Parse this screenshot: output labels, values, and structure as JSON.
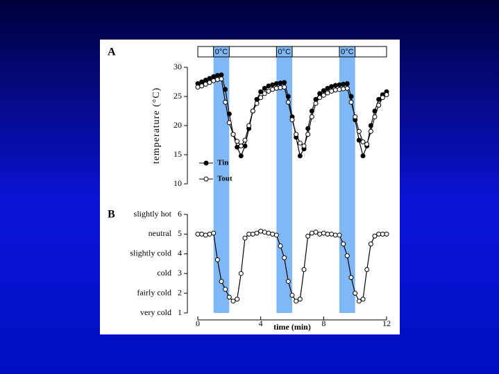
{
  "chart_data": [
    {
      "type": "line",
      "title": "A",
      "ylabel": "temperature (°C)",
      "x": [
        0,
        0.25,
        0.5,
        0.75,
        1,
        1.25,
        1.5,
        1.75,
        2,
        2.25,
        2.5,
        2.75,
        3,
        3.25,
        3.5,
        3.75,
        4,
        4.25,
        4.5,
        4.75,
        5,
        5.25,
        5.5,
        5.75,
        6,
        6.25,
        6.5,
        6.75,
        7,
        7.25,
        7.5,
        7.75,
        8,
        8.25,
        8.5,
        8.75,
        9,
        9.25,
        9.5,
        9.75,
        10,
        10.25,
        10.5,
        10.75,
        11,
        11.25,
        11.5,
        11.75,
        12
      ],
      "series": [
        {
          "name": "Tin",
          "color": "#000000",
          "values": [
            27.2,
            27.5,
            27.8,
            28.1,
            28.4,
            28.6,
            28.7,
            26.2,
            22.0,
            18.5,
            16.3,
            14.8,
            16.5,
            19.5,
            22.5,
            24.5,
            25.8,
            26.4,
            26.8,
            27.0,
            27.2,
            27.3,
            27.4,
            25.0,
            21.5,
            18.0,
            14.8,
            16.0,
            19.5,
            22.5,
            24.5,
            25.5,
            26.0,
            26.4,
            26.7,
            26.9,
            27.0,
            27.1,
            27.2,
            25.0,
            21.0,
            17.5,
            14.8,
            16.5,
            20.0,
            22.5,
            24.5,
            25.3,
            25.8
          ]
        },
        {
          "name": "Tout",
          "color": "#ffffff",
          "values": [
            26.6,
            26.8,
            27.1,
            27.4,
            27.7,
            27.9,
            28.0,
            24.0,
            20.5,
            18.5,
            17.3,
            16.5,
            17.5,
            20.0,
            22.5,
            23.8,
            24.8,
            25.5,
            25.9,
            26.2,
            26.4,
            26.5,
            26.6,
            24.0,
            21.0,
            18.5,
            17.0,
            16.5,
            18.5,
            21.5,
            23.8,
            24.8,
            25.2,
            25.6,
            25.9,
            26.1,
            26.2,
            26.3,
            26.4,
            24.0,
            21.5,
            19.0,
            17.2,
            16.8,
            19.0,
            21.5,
            23.5,
            24.8,
            25.3
          ]
        }
      ],
      "xlim": [
        0,
        12
      ],
      "ylim": [
        10,
        30
      ],
      "yticks": [
        10,
        15,
        20,
        25,
        30
      ],
      "bands": [
        {
          "start": 1,
          "end": 2,
          "label": "0°C"
        },
        {
          "start": 5,
          "end": 6,
          "label": "0°C"
        },
        {
          "start": 9,
          "end": 10,
          "label": "0°C"
        }
      ],
      "band_color": "#7fb8f5"
    },
    {
      "type": "line",
      "title": "B",
      "xlabel": "time (min)",
      "x": [
        0,
        0.25,
        0.5,
        0.75,
        1,
        1.25,
        1.5,
        1.75,
        2,
        2.25,
        2.5,
        2.75,
        3,
        3.25,
        3.5,
        3.75,
        4,
        4.25,
        4.5,
        4.75,
        5,
        5.25,
        5.5,
        5.75,
        6,
        6.25,
        6.5,
        6.75,
        7,
        7.25,
        7.5,
        7.75,
        8,
        8.25,
        8.5,
        8.75,
        9,
        9.25,
        9.5,
        9.75,
        10,
        10.25,
        10.5,
        10.75,
        11,
        11.25,
        11.5,
        11.75,
        12
      ],
      "series": [
        {
          "color": "#ffffff",
          "values": [
            5.0,
            5.0,
            4.95,
            5.0,
            5.05,
            3.7,
            2.6,
            2.2,
            1.8,
            1.6,
            1.7,
            3.0,
            4.8,
            5.0,
            5.0,
            5.05,
            5.15,
            5.1,
            5.05,
            5.0,
            4.95,
            4.4,
            3.8,
            2.6,
            1.9,
            1.6,
            1.7,
            3.2,
            4.9,
            5.05,
            5.1,
            5.0,
            5.05,
            5.0,
            5.0,
            4.95,
            4.95,
            4.5,
            3.9,
            2.8,
            2.0,
            1.6,
            1.7,
            3.2,
            4.5,
            4.9,
            5.0,
            5.0,
            5.0
          ]
        }
      ],
      "xlim": [
        0,
        12
      ],
      "xticks": [
        0,
        4,
        8,
        12
      ],
      "ylim": [
        1,
        6
      ],
      "yticks": [
        1,
        2,
        3,
        4,
        5,
        6
      ],
      "ytick_names": [
        "very cold",
        "fairly cold",
        "cold",
        "slightly cold",
        "neutral",
        "slightly hot"
      ]
    }
  ]
}
